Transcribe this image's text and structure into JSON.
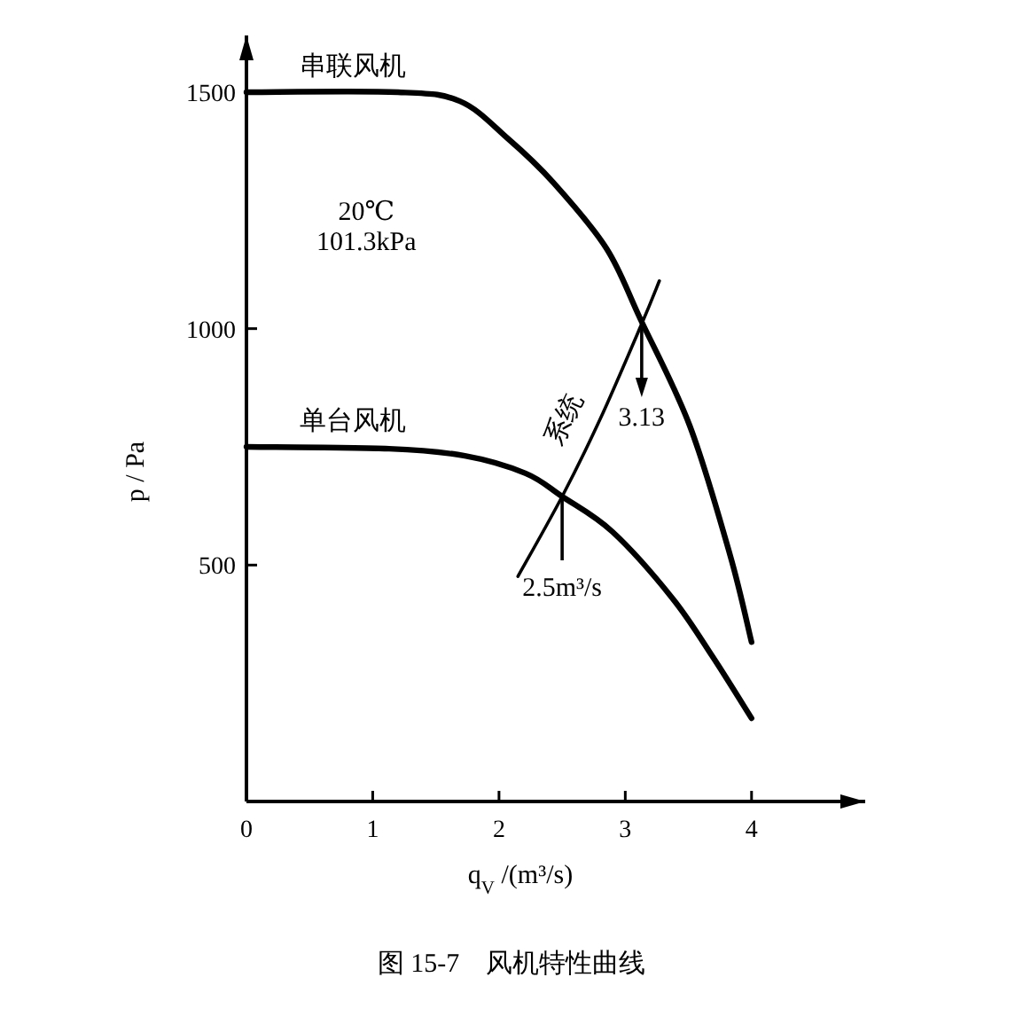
{
  "chart_data": {
    "type": "line",
    "title": "图 15-7　风机特性曲线",
    "xlabel": "q$_{V}$ /(m³/s)",
    "ylabel": "p / Pa",
    "xlim": [
      0,
      4.9
    ],
    "ylim": [
      0,
      1620
    ],
    "xticks": [
      0,
      1,
      2,
      3,
      4
    ],
    "yticks": [
      500,
      1000,
      1500
    ],
    "grid": false,
    "marker": "none",
    "line_style": "solid",
    "series": [
      {
        "name": "串联风机",
        "color": "#000000",
        "x": [
          0,
          1.2,
          1.69,
          2.07,
          2.43,
          2.85,
          3.12,
          3.51,
          3.83,
          4.0
        ],
        "values": [
          1500,
          1500,
          1481,
          1402,
          1309,
          1170,
          1020,
          795,
          521,
          337
        ]
      },
      {
        "name": "单台风机",
        "color": "#000000",
        "x": [
          0,
          1.13,
          1.73,
          2.21,
          2.5,
          2.9,
          3.37,
          3.69,
          4.0
        ],
        "values": [
          750,
          746,
          731,
          694,
          645,
          570,
          431,
          307,
          176
        ]
      },
      {
        "name": "系统",
        "color": "#000000",
        "x": [
          2.15,
          2.5,
          2.8,
          3.13,
          3.27
        ],
        "values": [
          476,
          645,
          808,
          1010,
          1101
        ]
      }
    ],
    "annotations": [
      "20℃",
      "101.3kPa",
      {
        "text": "3.13",
        "x": 3.13,
        "y": 1020
      },
      {
        "text": "2.5m³/s",
        "x": 2.5,
        "y": 645
      }
    ]
  }
}
